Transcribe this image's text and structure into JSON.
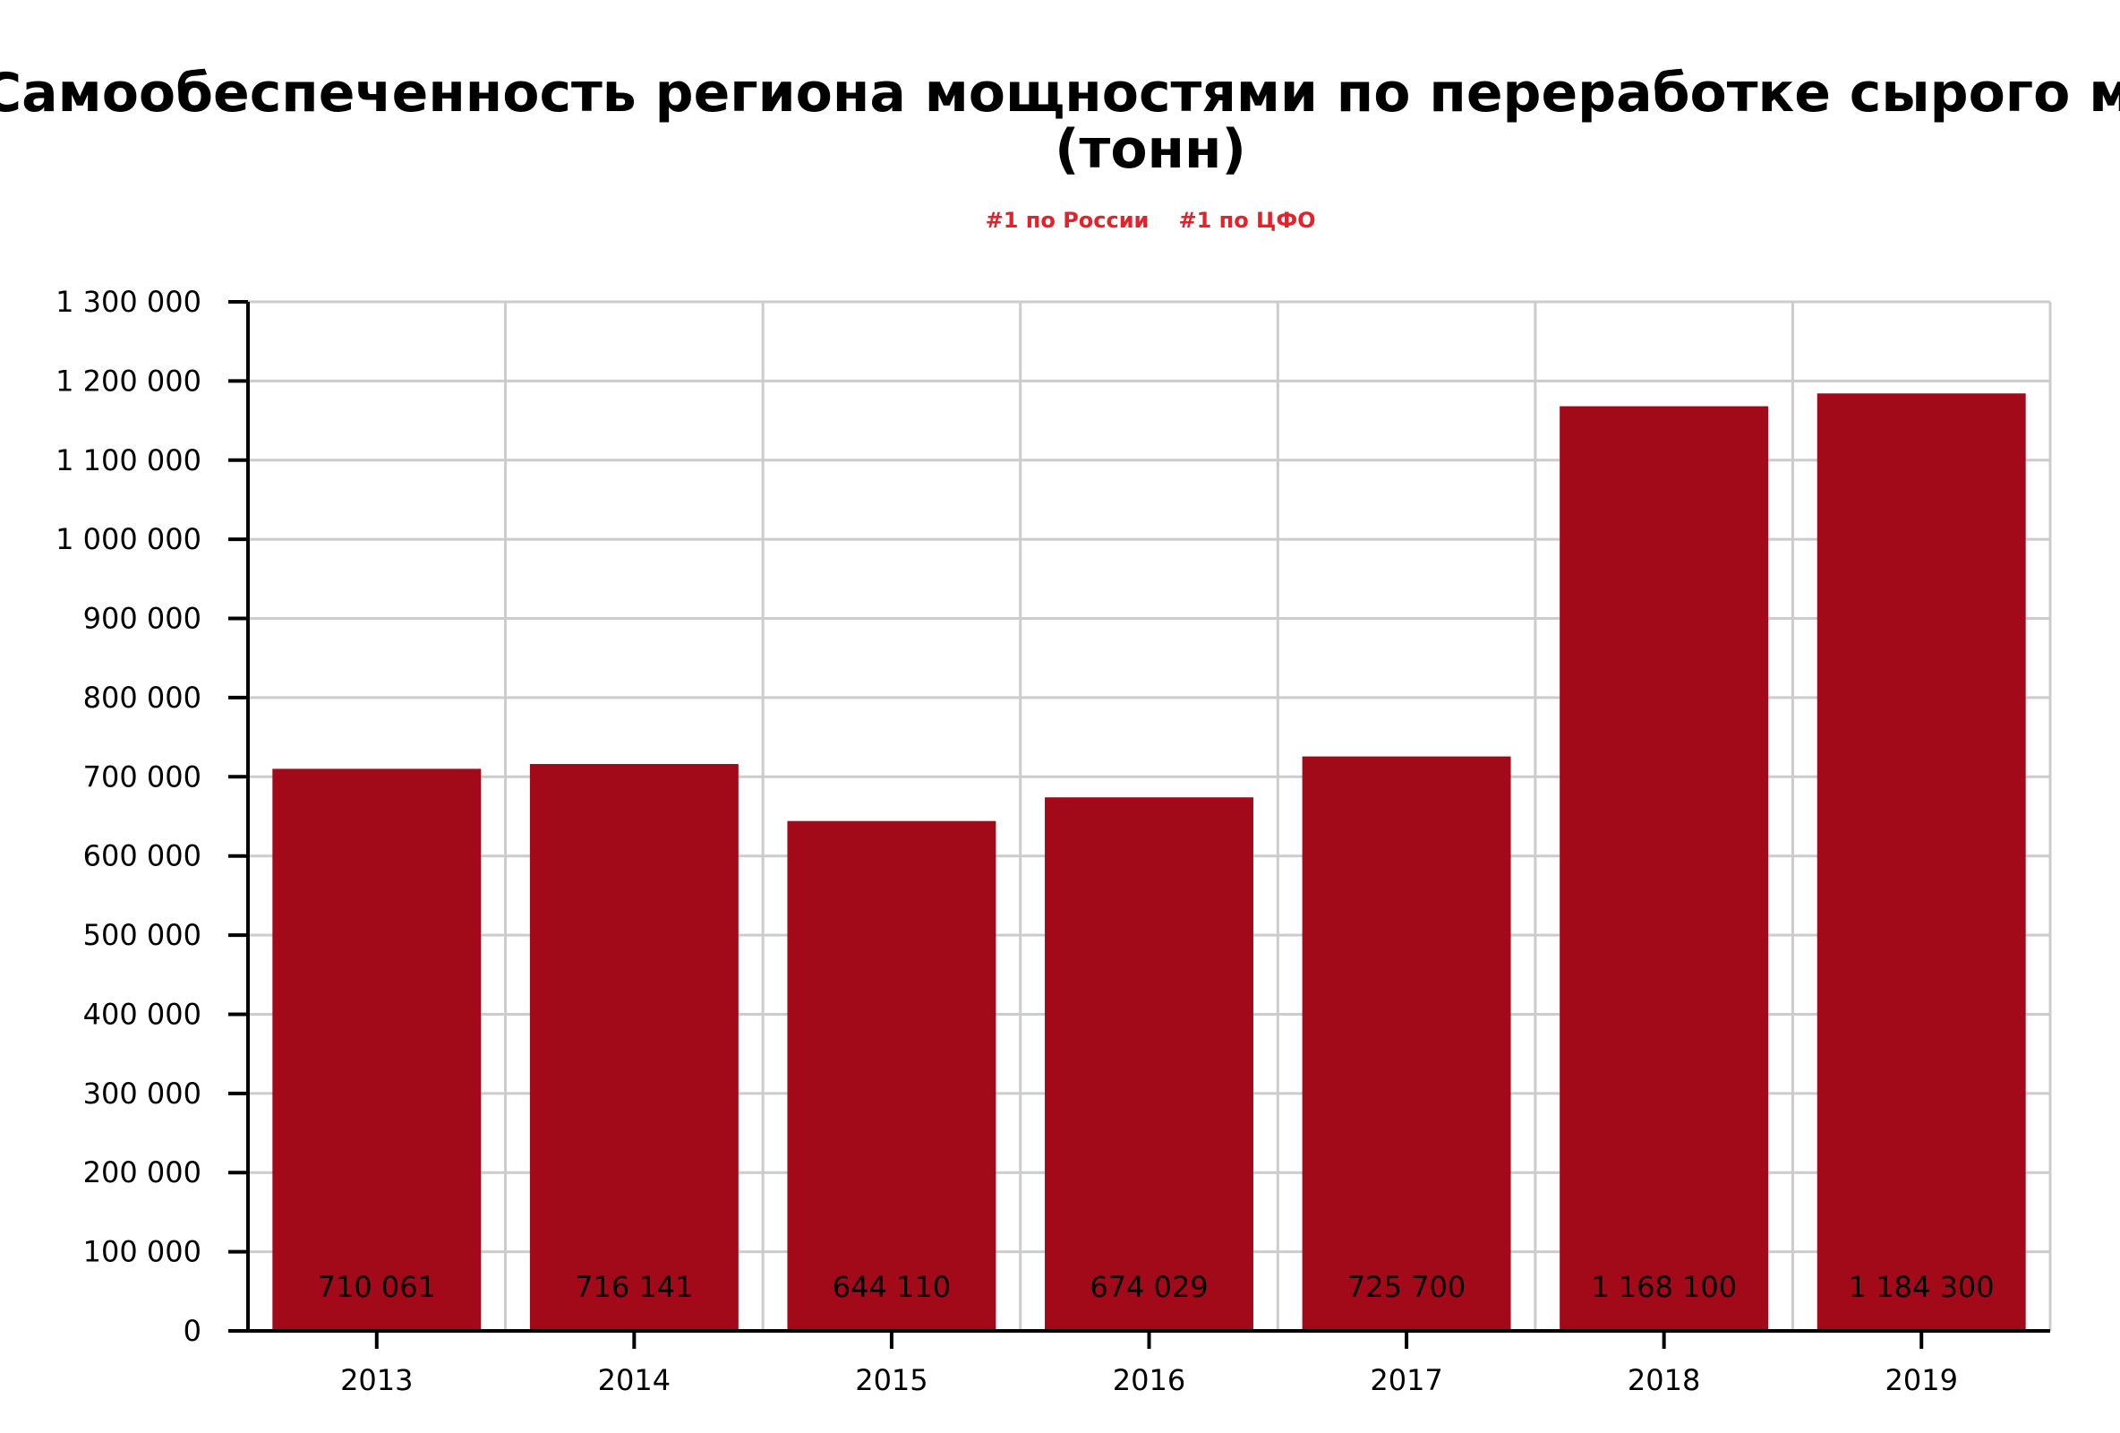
{
  "chart_data": {
    "type": "bar",
    "title": "Самообеспеченность региона мощностями по переработке сырого молока",
    "title_line2": "(тонн)",
    "subtitle": [
      "#1 по России",
      "#1 по ЦФО"
    ],
    "categories": [
      "2013",
      "2014",
      "2015",
      "2016",
      "2017",
      "2018",
      "2019"
    ],
    "values": [
      710061,
      716141,
      644110,
      674029,
      725700,
      1168100,
      1184300
    ],
    "value_labels": [
      "710 061",
      "716 141",
      "644 110",
      "674 029",
      "725 700",
      "1 168 100",
      "1 184 300"
    ],
    "y_ticks": [
      0,
      100000,
      200000,
      300000,
      400000,
      500000,
      600000,
      700000,
      800000,
      900000,
      1000000,
      1100000,
      1200000,
      1300000
    ],
    "y_tick_labels": [
      "0",
      "100 000",
      "200 000",
      "300 000",
      "400 000",
      "500 000",
      "600 000",
      "700 000",
      "800 000",
      "900 000",
      "1 000 000",
      "1 100 000",
      "1 200 000",
      "1 300 000"
    ],
    "ylim": [
      0,
      1300000
    ],
    "xlabel": "",
    "ylabel": "",
    "grid": true,
    "colors": {
      "bar": "#a30a19",
      "subtitle": "#e8202a",
      "grid": "#cccccc",
      "axis": "#000000"
    }
  }
}
